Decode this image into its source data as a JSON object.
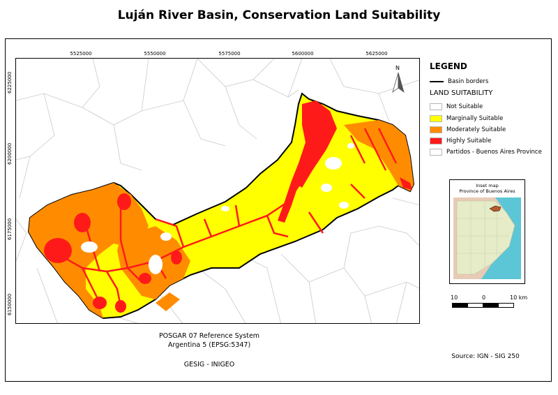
{
  "title": "Luján River Basin, Conservation Land Suitability",
  "x_ticks": [
    "5525000",
    "5550000",
    "5575000",
    "5600000",
    "5625000"
  ],
  "y_ticks": [
    "6225000",
    "6200000",
    "6175000",
    "6150000"
  ],
  "north_arrow_label": "N",
  "legend": {
    "title": "LEGEND",
    "basin_borders": "Basin borders",
    "suitability_title": "LAND SUITABILITY",
    "classes": [
      {
        "label": "Not Suitable",
        "color": "#ffffff"
      },
      {
        "label": "Marginally Suitable",
        "color": "#ffff00"
      },
      {
        "label": "Moderately Suitable",
        "color": "#ff8c00"
      },
      {
        "label": "Highly Suitable",
        "color": "#ff1a1a"
      },
      {
        "label": "Partidos - Buenos Aires Province",
        "color": "#ffffff"
      }
    ]
  },
  "inset": {
    "title_line1": "Inset map",
    "title_line2": "Province of Buenos Aires"
  },
  "scale_bar": {
    "left": "10",
    "middle": "0",
    "right": "10 km"
  },
  "reference_system_line1": "POSGAR 07 Reference System",
  "reference_system_line2": "Argentina 5 (EPSG:5347)",
  "credit": "GESIG - INIGEO",
  "source": "Source: IGN - SIG 250"
}
